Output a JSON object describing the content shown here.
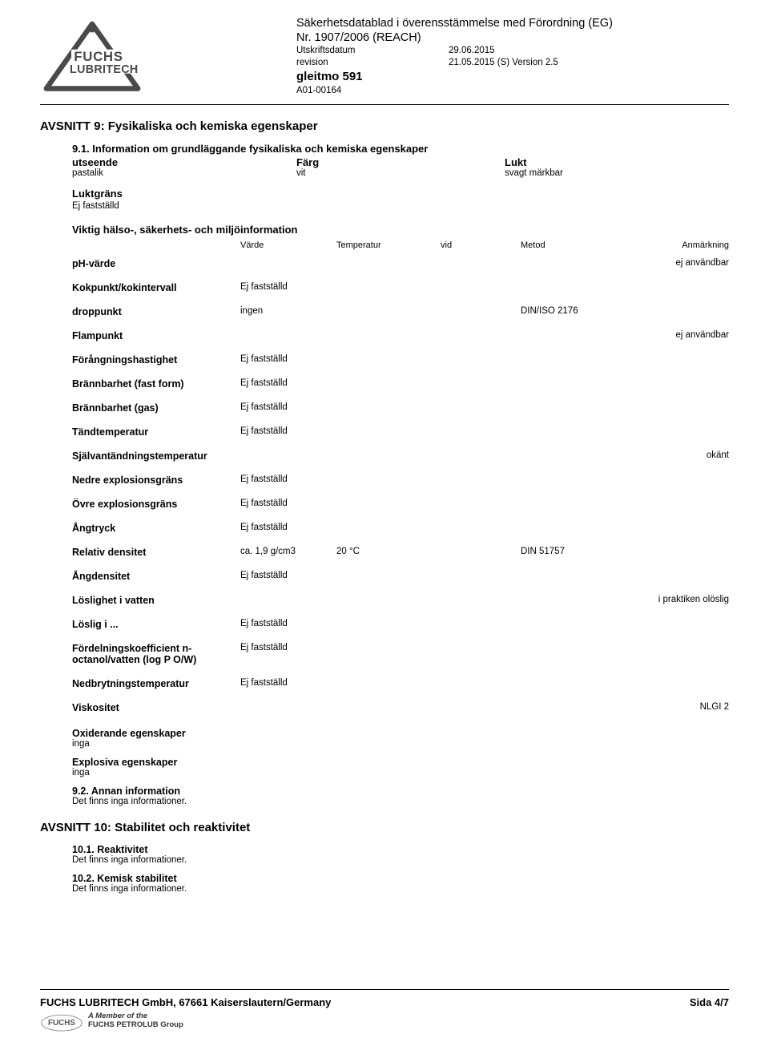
{
  "header": {
    "title_line1": "Säkerhetsdatablad i överensstämmelse med Förordning (EG)",
    "title_line2": "Nr. 1907/2006 (REACH)",
    "print_label": "Utskriftsdatum",
    "print_date": "29.06.2015",
    "rev_label": "revision",
    "rev_val": "21.05.2015   (S) Version 2.5",
    "product_name": "gleitmo 591",
    "product_code": "A01-00164"
  },
  "section9": {
    "head": "AVSNITT 9: Fysikaliska och kemiska egenskaper",
    "s91_head": "9.1. Information om grundläggande fysikaliska och kemiska egenskaper",
    "appearance_label": "utseende",
    "color_label": "Färg",
    "odor_label": "Lukt",
    "appearance_val": "pastalik",
    "color_val": "vit",
    "odor_val": "svagt märkbar",
    "odor_threshold_label": "Luktgräns",
    "not_determined": "Ej fastställd",
    "important_info": "Viktig hälso-, säkerhets- och miljöinformation",
    "col_head": {
      "varde": "Värde",
      "temp": "Temperatur",
      "vid": "vid",
      "metod": "Metod",
      "anm": "Anmärkning"
    },
    "rows": [
      {
        "name": "pH-värde",
        "varde": "",
        "temp": "",
        "vid": "",
        "metod": "",
        "anm": "ej användbar"
      },
      {
        "name": "Kokpunkt/kokintervall",
        "varde": "Ej fastställd",
        "temp": "",
        "vid": "",
        "metod": "",
        "anm": ""
      },
      {
        "name": "droppunkt",
        "varde": "ingen",
        "temp": "",
        "vid": "",
        "metod": "DIN/ISO 2176",
        "anm": ""
      },
      {
        "name": "Flampunkt",
        "varde": "",
        "temp": "",
        "vid": "",
        "metod": "",
        "anm": "ej användbar"
      },
      {
        "name": "Förångningshastighet",
        "varde": "Ej fastställd",
        "temp": "",
        "vid": "",
        "metod": "",
        "anm": ""
      },
      {
        "name": "Brännbarhet (fast form)",
        "varde": "Ej fastställd",
        "temp": "",
        "vid": "",
        "metod": "",
        "anm": ""
      },
      {
        "name": "Brännbarhet (gas)",
        "varde": "Ej fastställd",
        "temp": "",
        "vid": "",
        "metod": "",
        "anm": ""
      },
      {
        "name": "Tändtemperatur",
        "varde": "Ej fastställd",
        "temp": "",
        "vid": "",
        "metod": "",
        "anm": ""
      },
      {
        "name": "Självantändningstemperatur",
        "varde": "",
        "temp": "",
        "vid": "",
        "metod": "",
        "anm": "okänt"
      },
      {
        "name": "Nedre explosionsgräns",
        "varde": "Ej fastställd",
        "temp": "",
        "vid": "",
        "metod": "",
        "anm": ""
      },
      {
        "name": "Övre explosionsgräns",
        "varde": "Ej fastställd",
        "temp": "",
        "vid": "",
        "metod": "",
        "anm": ""
      },
      {
        "name": "Ångtryck",
        "varde": "Ej fastställd",
        "temp": "",
        "vid": "",
        "metod": "",
        "anm": ""
      },
      {
        "name": "Relativ densitet",
        "varde": "ca. 1,9 g/cm3",
        "temp": "20 °C",
        "vid": "",
        "metod": "DIN 51757",
        "anm": ""
      },
      {
        "name": "Ångdensitet",
        "varde": "Ej fastställd",
        "temp": "",
        "vid": "",
        "metod": "",
        "anm": ""
      },
      {
        "name": "Löslighet i vatten",
        "varde": "",
        "temp": "",
        "vid": "",
        "metod": "",
        "anm": "i praktiken olöslig"
      },
      {
        "name": "Löslig i ...",
        "varde": "Ej fastställd",
        "temp": "",
        "vid": "",
        "metod": "",
        "anm": ""
      },
      {
        "name": "Fördelningskoefficient n-octanol/vatten (log P O/W)",
        "varde": "Ej fastställd",
        "temp": "",
        "vid": "",
        "metod": "",
        "anm": ""
      },
      {
        "name": "Nedbrytningstemperatur",
        "varde": "Ej fastställd",
        "temp": "",
        "vid": "",
        "metod": "",
        "anm": ""
      },
      {
        "name": "Viskositet",
        "varde": "",
        "temp": "",
        "vid": "",
        "metod": "",
        "anm": "NLGI  2"
      }
    ],
    "ox_head": "Oxiderande egenskaper",
    "ox_val": "inga",
    "ex_head": "Explosiva egenskaper",
    "ex_val": "inga",
    "s92_head": "9.2. Annan information",
    "s92_text": "Det finns inga informationer."
  },
  "section10": {
    "head": "AVSNITT 10: Stabilitet och reaktivitet",
    "s101_head": "10.1. Reaktivitet",
    "s101_text": "Det finns inga informationer.",
    "s102_head": "10.2. Kemisk stabilitet",
    "s102_text": "Det finns inga informationer."
  },
  "footer": {
    "company": "FUCHS LUBRITECH GmbH, 67661 Kaiserslautern/Germany",
    "page": "Sida  4/7",
    "member_of_1": "A Member of the",
    "member_of_2": "FUCHS PETROLUB Group",
    "logo_word": "FUCHS"
  },
  "logo": {
    "line1": "FUCHS",
    "line2": "LUBRITECH"
  },
  "colors": {
    "text": "#000000",
    "bg": "#ffffff",
    "logo_gray": "#4a4a4a",
    "footer_gray": "#555555"
  }
}
